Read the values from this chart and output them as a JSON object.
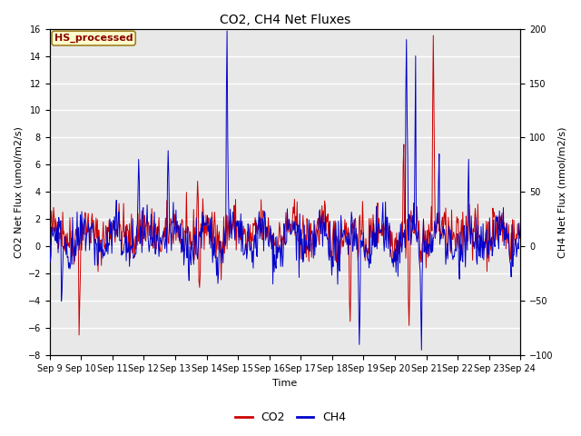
{
  "title": "CO2, CH4 Net Fluxes",
  "xlabel": "Time",
  "ylabel_left": "CO2 Net Flux (umol/m2/s)",
  "ylabel_right": "CH4 Net Flux (nmol/m2/s)",
  "ylim_left": [
    -8,
    16
  ],
  "ylim_right": [
    -100,
    200
  ],
  "yticks_left": [
    -8,
    -6,
    -4,
    -2,
    0,
    2,
    4,
    6,
    8,
    10,
    12,
    14,
    16
  ],
  "yticks_right": [
    -100,
    -50,
    0,
    50,
    100,
    150,
    200
  ],
  "xtick_labels": [
    "Sep 9",
    "Sep 10",
    "Sep 11",
    "Sep 12",
    "Sep 13",
    "Sep 14",
    "Sep 15",
    "Sep 16",
    "Sep 17",
    "Sep 18",
    "Sep 19",
    "Sep 20",
    "Sep 21",
    "Sep 22",
    "Sep 23",
    "Sep 24"
  ],
  "legend_label_co2": "CO2",
  "legend_label_ch4": "CH4",
  "site_label": "HS_processed",
  "co2_color": "#cc0000",
  "ch4_color": "#0000cc",
  "background_color": "#e8e8e8",
  "band_color_light": "#d8d8d8",
  "band_color_dark": "#c8c8c8",
  "grid_color": "#ffffff",
  "n_points": 720,
  "seed": 42,
  "title_fontsize": 10,
  "axis_label_fontsize": 8,
  "tick_fontsize": 7,
  "legend_fontsize": 9
}
